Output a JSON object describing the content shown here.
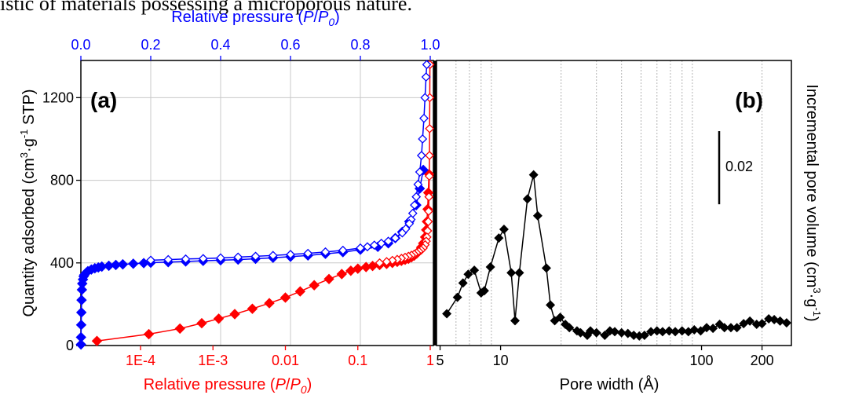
{
  "caption_text": "istic of materials possessing a microporous nature.",
  "chart_data": [
    {
      "panel": "(a)",
      "type": "scatter",
      "top_axis": {
        "label_prefix": "Relative pressure (",
        "label_var": "P",
        "label_sep": "/",
        "label_var2": "P",
        "label_sub": "0",
        "label_suffix": ")",
        "range": [
          0,
          1.0
        ],
        "ticks": [
          "0.0",
          "0.2",
          "0.4",
          "0.6",
          "0.8",
          "1.0"
        ],
        "color": "#0000ff"
      },
      "bottom_axis": {
        "label_prefix": "Relative pressure (",
        "label_var": "P",
        "label_sep": "/",
        "label_var2": "P",
        "label_sub": "0",
        "label_suffix": ")",
        "scale": "log",
        "range": [
          1.5e-05,
          1.0
        ],
        "ticks": [
          "1E-4",
          "1E-3",
          "0.01",
          "0.1",
          "1"
        ],
        "color": "#ff0000"
      },
      "y_axis": {
        "label_prefix": "Quantity adsorbed (cm",
        "label_sup1": "3",
        "label_mid": "·g",
        "label_sup2": "-1",
        "label_suffix": " STP)",
        "range": [
          0,
          1380
        ],
        "ticks": [
          "0",
          "400",
          "800",
          "1200"
        ]
      },
      "grid": true,
      "series": [
        {
          "color": "#0000ff",
          "axis": "top-linear",
          "adsorption": [
            [
              0.0003,
              5
            ],
            [
              0.0005,
              40
            ],
            [
              0.001,
              100
            ],
            [
              0.0015,
              160
            ],
            [
              0.002,
              220
            ],
            [
              0.003,
              270
            ],
            [
              0.004,
              300
            ],
            [
              0.006,
              320
            ],
            [
              0.008,
              335
            ],
            [
              0.01,
              342
            ],
            [
              0.015,
              352
            ],
            [
              0.02,
              360
            ],
            [
              0.03,
              368
            ],
            [
              0.04,
              374
            ],
            [
              0.05,
              378
            ],
            [
              0.06,
              382
            ],
            [
              0.08,
              386
            ],
            [
              0.1,
              390
            ],
            [
              0.12,
              393
            ],
            [
              0.15,
              396
            ],
            [
              0.18,
              399
            ],
            [
              0.2,
              401
            ],
            [
              0.25,
              404
            ],
            [
              0.3,
              407
            ],
            [
              0.35,
              410
            ],
            [
              0.4,
              413
            ],
            [
              0.45,
              416
            ],
            [
              0.5,
              420
            ],
            [
              0.55,
              425
            ],
            [
              0.6,
              430
            ],
            [
              0.65,
              436
            ],
            [
              0.7,
              444
            ],
            [
              0.75,
              452
            ],
            [
              0.8,
              464
            ],
            [
              0.85,
              478
            ],
            [
              0.88,
              495
            ],
            [
              0.9,
              520
            ],
            [
              0.92,
              550
            ],
            [
              0.94,
              600
            ],
            [
              0.96,
              680
            ],
            [
              0.97,
              760
            ],
            [
              0.98,
              850
            ]
          ],
          "desorption": [
            [
              0.99,
              1360
            ],
            [
              0.988,
              1300
            ],
            [
              0.985,
              1200
            ],
            [
              0.982,
              1100
            ],
            [
              0.978,
              1000
            ],
            [
              0.975,
              920
            ],
            [
              0.97,
              840
            ],
            [
              0.965,
              780
            ],
            [
              0.96,
              720
            ],
            [
              0.955,
              680
            ],
            [
              0.95,
              640
            ],
            [
              0.945,
              610
            ],
            [
              0.94,
              590
            ],
            [
              0.93,
              565
            ],
            [
              0.92,
              545
            ],
            [
              0.9,
              520
            ],
            [
              0.88,
              505
            ],
            [
              0.86,
              495
            ],
            [
              0.84,
              486
            ],
            [
              0.82,
              478
            ],
            [
              0.8,
              472
            ],
            [
              0.75,
              461
            ],
            [
              0.7,
              453
            ],
            [
              0.65,
              446
            ],
            [
              0.6,
              441
            ],
            [
              0.55,
              436
            ],
            [
              0.5,
              432
            ],
            [
              0.45,
              428
            ],
            [
              0.4,
              424
            ],
            [
              0.35,
              421
            ],
            [
              0.3,
              419
            ],
            [
              0.25,
              416
            ],
            [
              0.2,
              413
            ]
          ]
        },
        {
          "color": "#ff0000",
          "axis": "bottom-log",
          "adsorption": [
            [
              2.5e-05,
              22
            ],
            [
              0.00013,
              55
            ],
            [
              0.00035,
              82
            ],
            [
              0.0007,
              108
            ],
            [
              0.0012,
              130
            ],
            [
              0.002,
              152
            ],
            [
              0.0035,
              178
            ],
            [
              0.006,
              205
            ],
            [
              0.01,
              232
            ],
            [
              0.016,
              262
            ],
            [
              0.025,
              292
            ],
            [
              0.04,
              322
            ],
            [
              0.06,
              346
            ],
            [
              0.08,
              362
            ],
            [
              0.1,
              372
            ],
            [
              0.13,
              380
            ],
            [
              0.16,
              385
            ],
            [
              0.2,
              390
            ],
            [
              0.25,
              395
            ],
            [
              0.3,
              400
            ],
            [
              0.35,
              405
            ],
            [
              0.4,
              410
            ],
            [
              0.45,
              415
            ],
            [
              0.5,
              420
            ],
            [
              0.55,
              427
            ],
            [
              0.6,
              435
            ],
            [
              0.65,
              445
            ],
            [
              0.7,
              458
            ],
            [
              0.75,
              475
            ],
            [
              0.8,
              495
            ],
            [
              0.85,
              525
            ],
            [
              0.88,
              560
            ],
            [
              0.9,
              600
            ],
            [
              0.92,
              660
            ],
            [
              0.94,
              740
            ],
            [
              0.96,
              830
            ]
          ],
          "desorption": [
            [
              0.99,
              1360
            ],
            [
              0.985,
              1200
            ],
            [
              0.98,
              1050
            ],
            [
              0.975,
              920
            ],
            [
              0.97,
              820
            ],
            [
              0.96,
              720
            ],
            [
              0.95,
              650
            ],
            [
              0.94,
              600
            ],
            [
              0.92,
              555
            ],
            [
              0.9,
              525
            ],
            [
              0.88,
              505
            ],
            [
              0.85,
              488
            ],
            [
              0.8,
              472
            ],
            [
              0.75,
              462
            ],
            [
              0.7,
              455
            ],
            [
              0.65,
              448
            ],
            [
              0.6,
              442
            ],
            [
              0.55,
              437
            ],
            [
              0.5,
              432
            ],
            [
              0.45,
              427
            ],
            [
              0.4,
              422
            ],
            [
              0.35,
              417
            ],
            [
              0.3,
              412
            ],
            [
              0.25,
              406
            ],
            [
              0.2,
              400
            ]
          ]
        }
      ]
    },
    {
      "panel": "(b)",
      "type": "line",
      "x_axis": {
        "label": "Pore width (Å)",
        "scale": "log",
        "range": [
          4.8,
          280
        ],
        "ticks": [
          "5",
          "10",
          "100",
          "200"
        ]
      },
      "y_axis": {
        "label_prefix": "Incremental pore volume (cm",
        "label_sup1": "3",
        "label_mid": "·g",
        "label_sup2": "-1",
        "label_suffix": ")",
        "range": [
          0.0,
          0.078
        ]
      },
      "scale_bar": {
        "label": "0.02",
        "value": 0.02
      },
      "grid": true,
      "series": [
        {
          "color": "#000000",
          "points": [
            [
              5.4,
              0.0087
            ],
            [
              6.1,
              0.0132
            ],
            [
              6.5,
              0.0171
            ],
            [
              6.9,
              0.0195
            ],
            [
              7.4,
              0.0206
            ],
            [
              8.0,
              0.0144
            ],
            [
              8.3,
              0.015
            ],
            [
              8.9,
              0.0215
            ],
            [
              9.8,
              0.0294
            ],
            [
              10.4,
              0.0318
            ],
            [
              11.3,
              0.0199
            ],
            [
              11.8,
              0.0068
            ],
            [
              12.4,
              0.0199
            ],
            [
              13.6,
              0.0401
            ],
            [
              14.6,
              0.0467
            ],
            [
              15.3,
              0.0355
            ],
            [
              16.9,
              0.0212
            ],
            [
              17.7,
              0.0111
            ],
            [
              18.6,
              0.0068
            ],
            [
              19.8,
              0.0077
            ],
            [
              21,
              0.0058
            ],
            [
              22,
              0.0049
            ],
            [
              24,
              0.004
            ],
            [
              25,
              0.0035
            ],
            [
              27,
              0.0028
            ],
            [
              28,
              0.004
            ],
            [
              30,
              0.0035
            ],
            [
              33,
              0.0028
            ],
            [
              35,
              0.004
            ],
            [
              37,
              0.0038
            ],
            [
              40,
              0.0035
            ],
            [
              43,
              0.0033
            ],
            [
              46,
              0.0028
            ],
            [
              49,
              0.0026
            ],
            [
              52,
              0.0028
            ],
            [
              56,
              0.0038
            ],
            [
              60,
              0.004
            ],
            [
              64,
              0.0038
            ],
            [
              69,
              0.004
            ],
            [
              74,
              0.0038
            ],
            [
              80,
              0.004
            ],
            [
              86,
              0.0038
            ],
            [
              92,
              0.0043
            ],
            [
              99,
              0.004
            ],
            [
              106,
              0.0049
            ],
            [
              114,
              0.0047
            ],
            [
              123,
              0.0058
            ],
            [
              130,
              0.0049
            ],
            [
              140,
              0.0049
            ],
            [
              150,
              0.0049
            ],
            [
              162,
              0.006
            ],
            [
              174,
              0.0067
            ],
            [
              188,
              0.0058
            ],
            [
              200,
              0.006
            ],
            [
              216,
              0.0073
            ],
            [
              230,
              0.0071
            ],
            [
              246,
              0.0067
            ],
            [
              265,
              0.0062
            ]
          ]
        }
      ]
    }
  ]
}
